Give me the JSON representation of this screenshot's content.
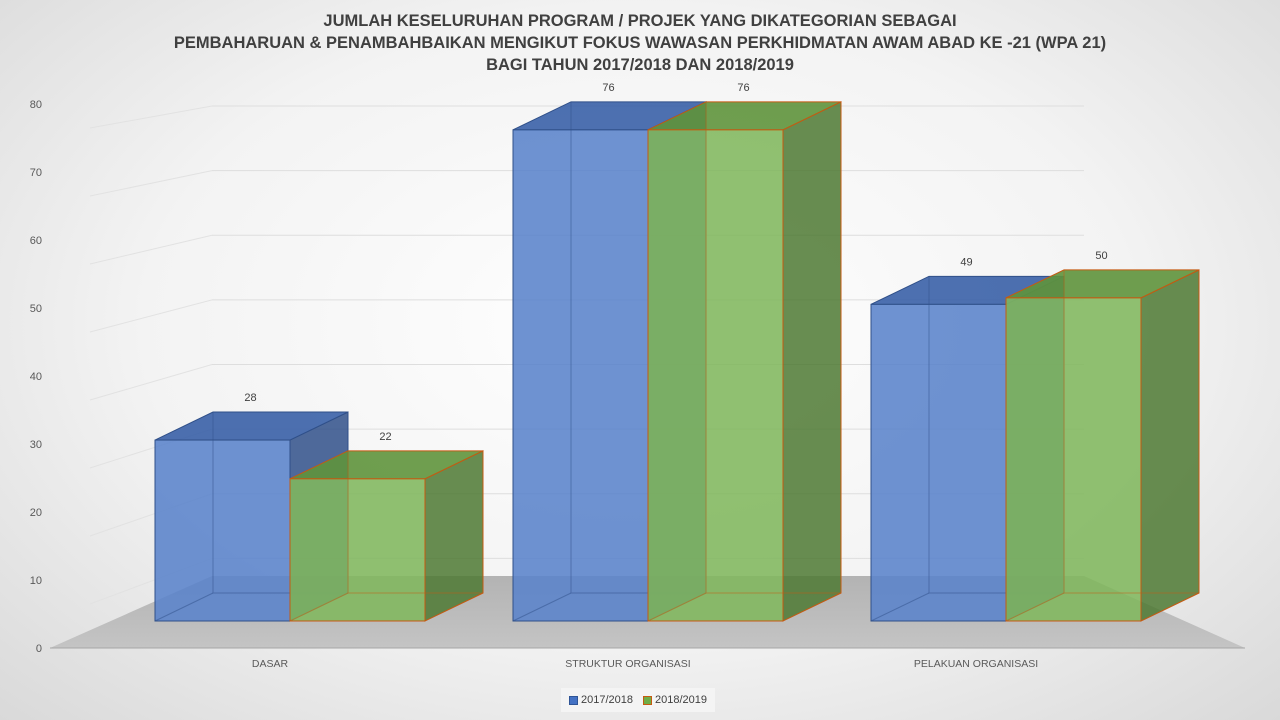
{
  "chart_data": {
    "type": "bar",
    "title_lines": [
      "JUMLAH KESELURUHAN PROGRAM / PROJEK YANG DIKATEGORIAN SEBAGAI",
      "PEMBAHARUAN & PENAMBAHBAIKAN MENGIKUT FOKUS WAWASAN PERKHIDMATAN AWAM ABAD KE -21 (WPA 21)",
      "BAGI TAHUN 2017/2018 DAN 2018/2019"
    ],
    "categories": [
      "DASAR",
      "STRUKTUR ORGANISASI",
      "PELAKUAN ORGANISASI"
    ],
    "series": [
      {
        "name": "2017/2018",
        "values": [
          28,
          76,
          49
        ],
        "color": "#4472C4"
      },
      {
        "name": "2018/2019",
        "values": [
          22,
          76,
          50
        ],
        "color": "#70AD47"
      }
    ],
    "ylim": [
      0,
      80
    ],
    "yticks": [
      0,
      10,
      20,
      30,
      40,
      50,
      60,
      70,
      80
    ],
    "data_labels": true,
    "grid": true,
    "legend_position": "bottom",
    "render": "3d-clustered-columns"
  }
}
